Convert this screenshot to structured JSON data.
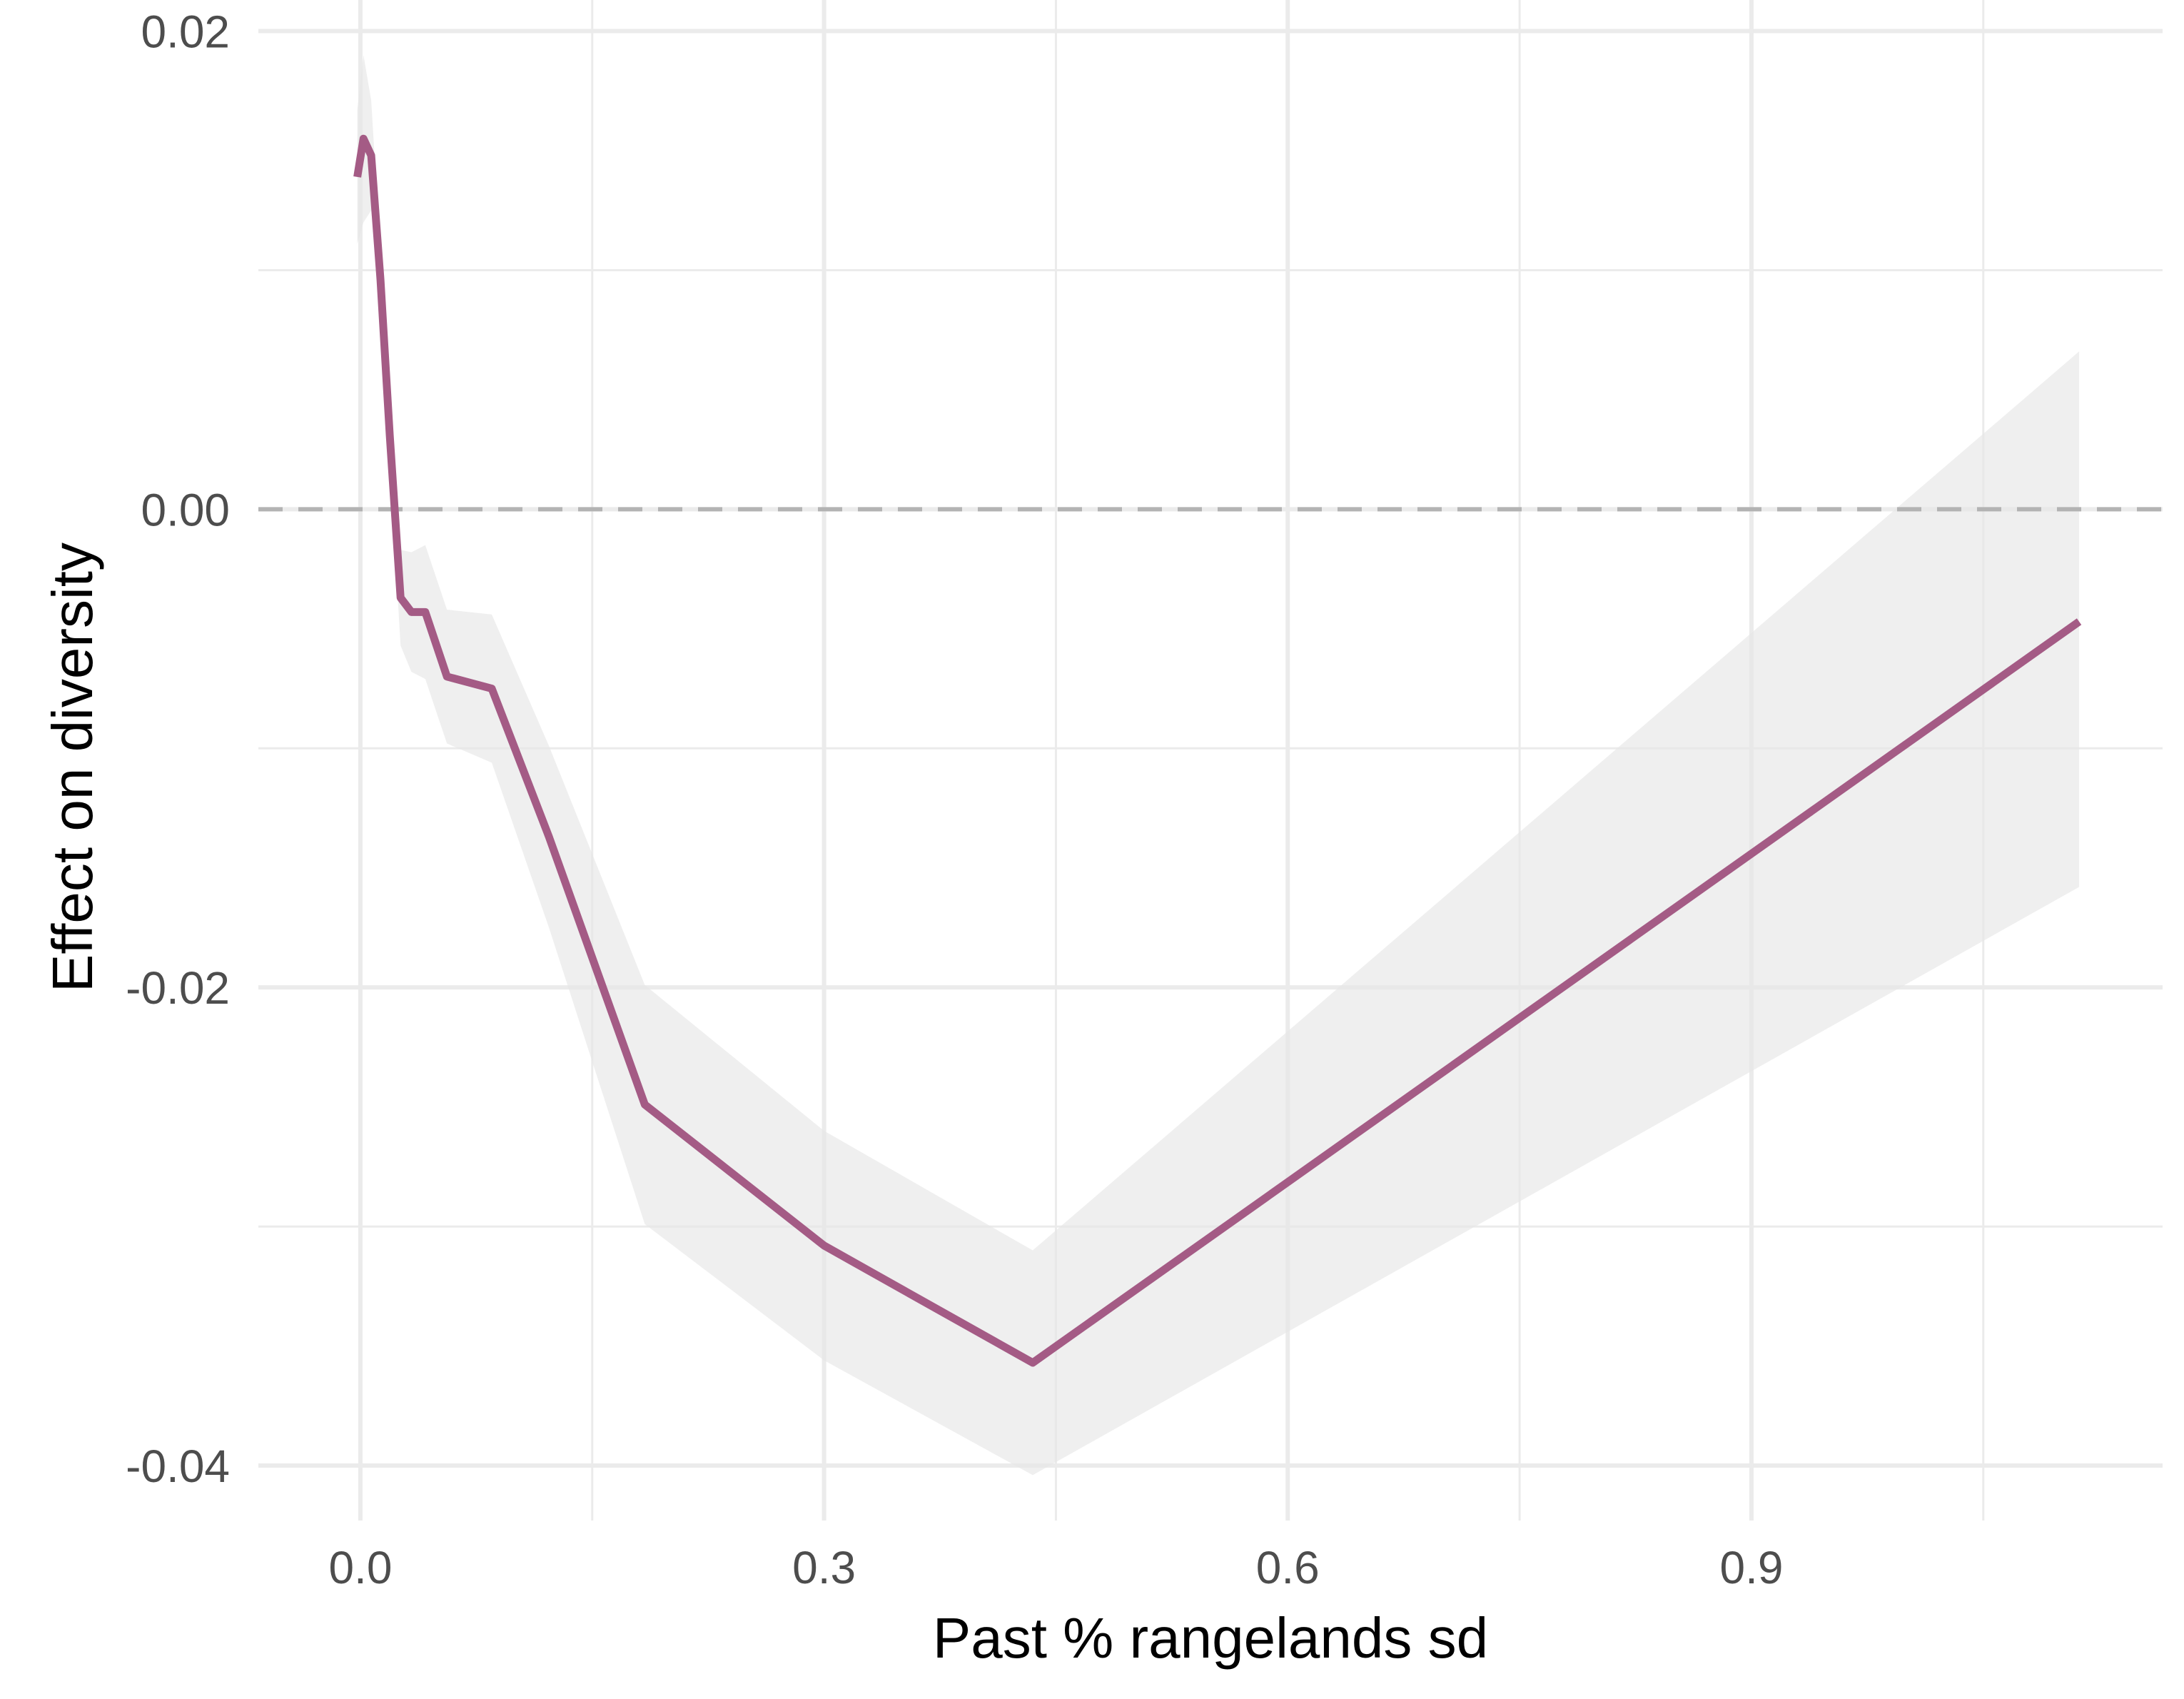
{
  "chart_data": {
    "type": "line",
    "xlabel": "Past % rangelands sd",
    "ylabel": "Effect on diversity",
    "xlim": [
      -0.066,
      1.166
    ],
    "ylim": [
      -0.0423,
      0.0213
    ],
    "x_ticks": [
      0.0,
      0.3,
      0.6,
      0.9
    ],
    "x_tick_labels": [
      "0.0",
      "0.3",
      "0.6",
      "0.9"
    ],
    "x_minor_ticks": [
      0.15,
      0.45,
      0.75,
      1.05
    ],
    "y_ticks": [
      0.02,
      0.0,
      -0.02,
      -0.04
    ],
    "y_tick_labels": [
      "0.02",
      "0.00",
      "-0.02",
      "-0.04"
    ],
    "y_minor_ticks": [
      0.01,
      -0.01,
      -0.03
    ],
    "grid": true,
    "reference_line": {
      "y": 0.0,
      "style": "dashed",
      "color": "#b3b3b3"
    },
    "series": [
      {
        "color": "#a45b85",
        "x": [
          -0.002,
          0.002,
          0.007,
          0.013,
          0.019,
          0.026,
          0.033,
          0.042,
          0.056,
          0.085,
          0.122,
          0.184,
          0.3,
          0.435,
          1.112
        ],
        "y": [
          0.0139,
          0.0155,
          0.0148,
          0.0096,
          0.0031,
          -0.0037,
          -0.0043,
          -0.0043,
          -0.007,
          -0.0075,
          -0.0137,
          -0.0249,
          -0.0308,
          -0.0357,
          -0.0047
        ],
        "lower": [
          0.0111,
          0.012,
          0.0125,
          0.0085,
          0.002,
          -0.0057,
          -0.0068,
          -0.0071,
          -0.0098,
          -0.0106,
          -0.0175,
          -0.0299,
          -0.0356,
          -0.0404,
          -0.0158
        ],
        "upper": [
          0.0167,
          0.019,
          0.0171,
          0.0107,
          0.0042,
          -0.0017,
          -0.0018,
          -0.0015,
          -0.0042,
          -0.0044,
          -0.0099,
          -0.0199,
          -0.026,
          -0.031,
          0.0066
        ]
      }
    ],
    "band_color": "#e6e6e6",
    "band_opacity": 0.65
  }
}
